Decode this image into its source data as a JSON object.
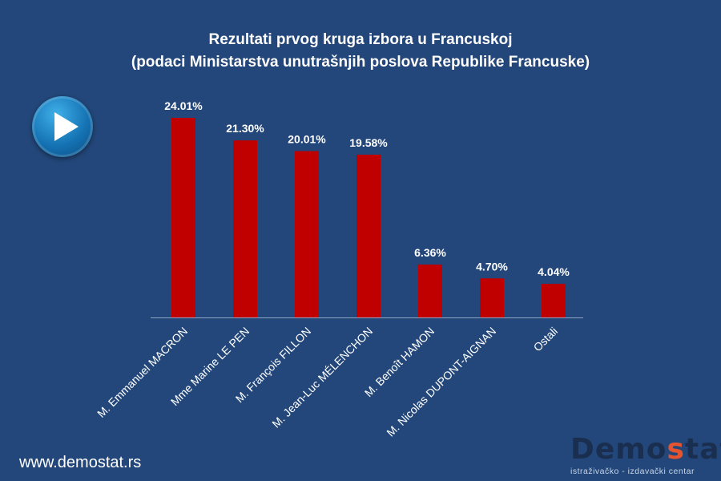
{
  "header": {
    "title_line1": "Rezultati prvog kruga izbora u Francuskoj",
    "title_line2": "(podaci Ministarstva unutrašnjih poslova Republike Francuske)"
  },
  "footer": {
    "website": "www.demostat.rs",
    "logo_part1": "Demo",
    "logo_accent": "s",
    "logo_part2": "tat",
    "logo_tagline": "istraživačko - izdavački centar"
  },
  "play_button": {
    "icon": "play-icon"
  },
  "colors": {
    "background": "#23477a",
    "bar": "#c00000",
    "text": "#ffffff"
  },
  "chart_data": {
    "type": "bar",
    "categories": [
      "M. Emmanuel MACRON",
      "Mme Marine LE PEN",
      "M. François FILLON",
      "M. Jean-Luc MÉLENCHON",
      "M. Benoît HAMON",
      "M. Nicolas DUPONT-AIGNAN",
      "Ostali"
    ],
    "values": [
      24.01,
      21.3,
      20.01,
      19.58,
      6.36,
      4.7,
      4.04
    ],
    "value_labels": [
      "24.01%",
      "21.30%",
      "20.01%",
      "19.58%",
      "6.36%",
      "4.70%",
      "4.04%"
    ],
    "ylim": [
      0,
      24.01
    ],
    "grid": false,
    "legend": "none"
  }
}
